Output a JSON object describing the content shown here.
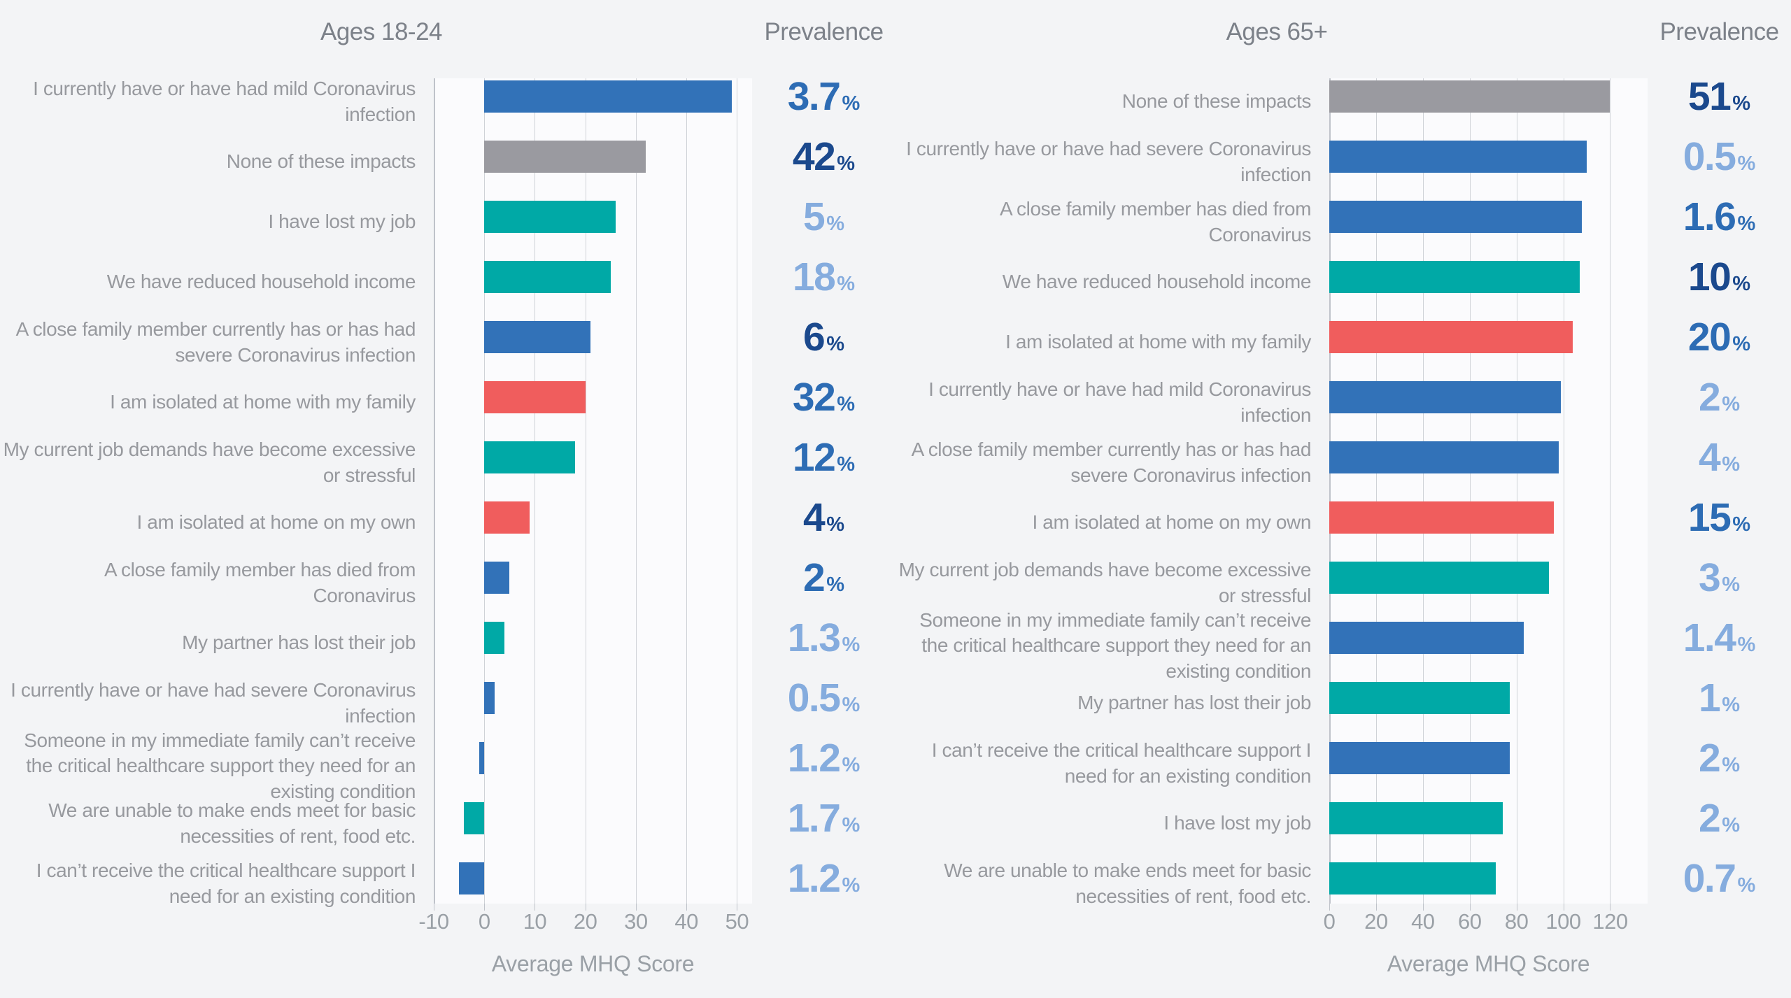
{
  "palette": {
    "background": "#f3f4f6",
    "plot_background": "#fbfbfd",
    "gridline": "#cfd2d7",
    "axis_edge_line": "#bfc3ca",
    "title_text": "#7c8189",
    "label_text": "#97999e",
    "axis_text": "#9aa0a6",
    "bar": {
      "blue": "#3272b8",
      "teal": "#00a9a6",
      "red": "#f05d5d",
      "grey": "#9a9aa0"
    },
    "prevalence_text": {
      "dark": "#1b498d",
      "medium": "#2d6cb4",
      "light": "#85acde"
    }
  },
  "chart_data": [
    {
      "type": "bar",
      "orientation": "horizontal",
      "title": "Ages 18-24",
      "prevalence_heading": "Prevalence",
      "xlabel": "Average MHQ Score",
      "axis": {
        "min": -10,
        "max": 53,
        "ticks": [
          -10,
          0,
          10,
          20,
          30,
          40,
          50
        ]
      },
      "rows": [
        {
          "label": "I currently have or have had mild Coronavirus infection",
          "mhq_score": 49,
          "bar_color": "blue",
          "prevalence": "3.7",
          "prevalence_shade": "medium"
        },
        {
          "label": "None of these impacts",
          "mhq_score": 32,
          "bar_color": "grey",
          "prevalence": "42",
          "prevalence_shade": "dark"
        },
        {
          "label": "I have lost my job",
          "mhq_score": 26,
          "bar_color": "teal",
          "prevalence": "5",
          "prevalence_shade": "light"
        },
        {
          "label": "We have reduced household income",
          "mhq_score": 25,
          "bar_color": "teal",
          "prevalence": "18",
          "prevalence_shade": "light"
        },
        {
          "label": "A close family member currently has or has had severe Coronavirus infection",
          "mhq_score": 21,
          "bar_color": "blue",
          "prevalence": "6",
          "prevalence_shade": "dark"
        },
        {
          "label": "I am isolated at home with my family",
          "mhq_score": 20,
          "bar_color": "red",
          "prevalence": "32",
          "prevalence_shade": "medium"
        },
        {
          "label": "My current job demands have become excessive or stressful",
          "mhq_score": 18,
          "bar_color": "teal",
          "prevalence": "12",
          "prevalence_shade": "medium"
        },
        {
          "label": "I am isolated at home on my own",
          "mhq_score": 9,
          "bar_color": "red",
          "prevalence": "4",
          "prevalence_shade": "dark"
        },
        {
          "label": "A close family member has died from Coronavirus",
          "mhq_score": 5,
          "bar_color": "blue",
          "prevalence": "2",
          "prevalence_shade": "medium"
        },
        {
          "label": "My partner has lost their job",
          "mhq_score": 4,
          "bar_color": "teal",
          "prevalence": "1.3",
          "prevalence_shade": "light"
        },
        {
          "label": "I currently have or have had severe Coronavirus infection",
          "mhq_score": 2,
          "bar_color": "blue",
          "prevalence": "0.5",
          "prevalence_shade": "light"
        },
        {
          "label": "Someone in my immediate family can’t receive the critical healthcare support they need for an existing condition",
          "mhq_score": -1,
          "bar_color": "blue",
          "prevalence": "1.2",
          "prevalence_shade": "light"
        },
        {
          "label": "We are unable to make ends meet for basic necessities of rent, food etc.",
          "mhq_score": -4,
          "bar_color": "teal",
          "prevalence": "1.7",
          "prevalence_shade": "light"
        },
        {
          "label": "I can’t receive the critical healthcare support I need for an existing condition",
          "mhq_score": -5,
          "bar_color": "blue",
          "prevalence": "1.2",
          "prevalence_shade": "light"
        }
      ]
    },
    {
      "type": "bar",
      "orientation": "horizontal",
      "title": "Ages 65+",
      "prevalence_heading": "Prevalence",
      "xlabel": "Average MHQ Score",
      "axis": {
        "min": 0,
        "max": 136,
        "ticks": [
          0,
          20,
          40,
          60,
          80,
          100,
          120
        ]
      },
      "rows": [
        {
          "label": "None of these impacts",
          "mhq_score": 120,
          "bar_color": "grey",
          "prevalence": "51",
          "prevalence_shade": "dark"
        },
        {
          "label": "I currently have or have had severe Coronavirus infection",
          "mhq_score": 110,
          "bar_color": "blue",
          "prevalence": "0.5",
          "prevalence_shade": "light"
        },
        {
          "label": "A close family member has died from Coronavirus",
          "mhq_score": 108,
          "bar_color": "blue",
          "prevalence": "1.6",
          "prevalence_shade": "medium"
        },
        {
          "label": "We have reduced household income",
          "mhq_score": 107,
          "bar_color": "teal",
          "prevalence": "10",
          "prevalence_shade": "dark"
        },
        {
          "label": "I am isolated at home with my family",
          "mhq_score": 104,
          "bar_color": "red",
          "prevalence": "20",
          "prevalence_shade": "medium"
        },
        {
          "label": "I currently have or have had mild Coronavirus infection",
          "mhq_score": 99,
          "bar_color": "blue",
          "prevalence": "2",
          "prevalence_shade": "light"
        },
        {
          "label": "A close family member currently has or has had severe Coronavirus infection",
          "mhq_score": 98,
          "bar_color": "blue",
          "prevalence": "4",
          "prevalence_shade": "light"
        },
        {
          "label": "I am isolated at home on my own",
          "mhq_score": 96,
          "bar_color": "red",
          "prevalence": "15",
          "prevalence_shade": "medium"
        },
        {
          "label": "My current job demands have become excessive or stressful",
          "mhq_score": 94,
          "bar_color": "teal",
          "prevalence": "3",
          "prevalence_shade": "light"
        },
        {
          "label": "Someone in my immediate family can’t receive the critical healthcare support they need for an existing condition",
          "mhq_score": 83,
          "bar_color": "blue",
          "prevalence": "1.4",
          "prevalence_shade": "light"
        },
        {
          "label": "My partner has lost their job",
          "mhq_score": 77,
          "bar_color": "teal",
          "prevalence": "1",
          "prevalence_shade": "light"
        },
        {
          "label": "I can’t receive the critical healthcare support I need for an existing condition",
          "mhq_score": 77,
          "bar_color": "blue",
          "prevalence": "2",
          "prevalence_shade": "light"
        },
        {
          "label": "I have lost my job",
          "mhq_score": 74,
          "bar_color": "teal",
          "prevalence": "2",
          "prevalence_shade": "light"
        },
        {
          "label": "We are unable to make ends meet for basic necessities of rent, food etc.",
          "mhq_score": 71,
          "bar_color": "teal",
          "prevalence": "0.7",
          "prevalence_shade": "light"
        }
      ]
    }
  ]
}
